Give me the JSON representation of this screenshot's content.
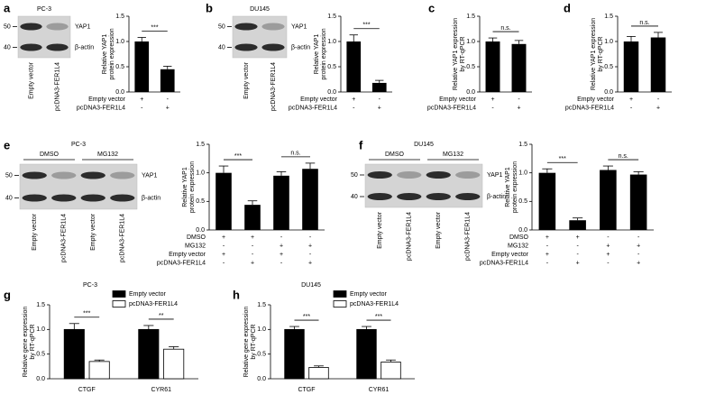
{
  "panels": [
    "a",
    "b",
    "c",
    "d",
    "e",
    "f",
    "g",
    "h"
  ],
  "blots": [
    {
      "title": "PC-3",
      "lanes": [
        "Empty vector",
        "pcDNA3-FER1L4"
      ],
      "bands": [
        "YAP1",
        "β-actin"
      ],
      "markers": [
        "50",
        "40"
      ]
    },
    {
      "title": "DU145",
      "lanes": [
        "Empty vector",
        "pcDNA3-FER1L4"
      ],
      "bands": [
        "YAP1",
        "β-actin"
      ],
      "markers": [
        "50",
        "40"
      ]
    },
    {
      "title": "PC-3",
      "groups": [
        "DMSO",
        "MG132"
      ],
      "lanes": [
        "Empty vector",
        "pcDNA3-FER1L4",
        "Empty vector",
        "pcDNA3-FER1L4"
      ],
      "bands": [
        "YAP1",
        "β-actin"
      ],
      "markers": [
        "50",
        "40"
      ]
    },
    {
      "title": "DU145",
      "groups": [
        "DMSO",
        "MG132"
      ],
      "lanes": [
        "Empty vector",
        "pcDNA3-FER1L4",
        "Empty vector",
        "pcDNA3-FER1L4"
      ],
      "bands": [
        "YAP1",
        "β-actin"
      ],
      "markers": [
        "50",
        "40"
      ]
    }
  ],
  "chart_data": [
    {
      "type": "bar",
      "y_label": [
        "Relative YAP1",
        "protein expression"
      ],
      "values": [
        1.0,
        0.45
      ],
      "errors": [
        0.08,
        0.06
      ],
      "color": "#000000",
      "conditions": [
        {
          "label": "Empty vector",
          "signs": [
            "+",
            "-"
          ]
        },
        {
          "label": "pcDNA3-FER1L4",
          "signs": [
            "-",
            "+"
          ]
        }
      ],
      "significance": [
        "***"
      ],
      "ylim": [
        0,
        1.5
      ],
      "yticks": [
        {
          "value": 0,
          "label": "0.0"
        },
        0.5,
        {
          "value": 1,
          "label": "1.0"
        },
        1.5
      ]
    },
    {
      "type": "bar",
      "y_label": [
        "Relative YAP1",
        "protein expression"
      ],
      "values": [
        1.0,
        0.18
      ],
      "errors": [
        0.13,
        0.05
      ],
      "color": "#000000",
      "conditions": [
        {
          "label": "Empty vector",
          "signs": [
            "+",
            "-"
          ]
        },
        {
          "label": "pcDNA3-FER1L4",
          "signs": [
            "-",
            "+"
          ]
        }
      ],
      "significance": [
        "***"
      ],
      "ylim": [
        0,
        1.5
      ],
      "yticks": [
        {
          "value": 0,
          "label": "0.0"
        },
        0.5,
        {
          "value": 1,
          "label": "1.0"
        },
        1.5
      ]
    },
    {
      "type": "bar",
      "y_label": [
        "Relative YAP1 expression",
        "by RT-qPCR"
      ],
      "values": [
        1.0,
        0.95
      ],
      "errors": [
        0.07,
        0.07
      ],
      "color": "#000000",
      "conditions": [
        {
          "label": "Empty vector",
          "signs": [
            "+",
            "-"
          ]
        },
        {
          "label": "pcDNA3-FER1L4",
          "signs": [
            "-",
            "+"
          ]
        }
      ],
      "significance": [
        "n.s."
      ],
      "ylim": [
        0,
        1.5
      ],
      "yticks": [
        {
          "value": 0,
          "label": "0.0"
        },
        0.5,
        {
          "value": 1,
          "label": "1.0"
        },
        1.5
      ]
    },
    {
      "type": "bar",
      "y_label": [
        "Relative YAP1 expression",
        "by RT-qPCR"
      ],
      "values": [
        1.0,
        1.08
      ],
      "errors": [
        0.1,
        0.1
      ],
      "color": "#000000",
      "conditions": [
        {
          "label": "Empty vector",
          "signs": [
            "+",
            "-"
          ]
        },
        {
          "label": "pcDNA3-FER1L4",
          "signs": [
            "-",
            "+"
          ]
        }
      ],
      "significance": [
        "n.s."
      ],
      "ylim": [
        0,
        1.5
      ],
      "yticks": [
        {
          "value": 0,
          "label": "0.0"
        },
        0.5,
        {
          "value": 1,
          "label": "1.0"
        },
        1.5
      ]
    },
    {
      "type": "bar",
      "y_label": [
        "Relative YAP1",
        "protein expression"
      ],
      "values": [
        1.0,
        0.44,
        0.95,
        1.07
      ],
      "errors": [
        0.12,
        0.07,
        0.07,
        0.1
      ],
      "color": "#000000",
      "conditions": [
        {
          "label": "DMSO",
          "signs": [
            "+",
            "+",
            "-",
            "-"
          ]
        },
        {
          "label": "MG132",
          "signs": [
            "-",
            "-",
            "+",
            "+"
          ]
        },
        {
          "label": "Empty vector",
          "signs": [
            "+",
            "-",
            "+",
            "-"
          ]
        },
        {
          "label": "pcDNA3-FER1L4",
          "signs": [
            "-",
            "+",
            "-",
            "+"
          ]
        }
      ],
      "significance": [
        "***",
        "n.s."
      ],
      "ylim": [
        0,
        1.5
      ],
      "yticks": [
        {
          "value": 0,
          "label": "0.0"
        },
        0.5,
        {
          "value": 1,
          "label": "1.0"
        },
        1.5
      ]
    },
    {
      "type": "bar",
      "y_label": [
        "Relative YAP1",
        "protein expression"
      ],
      "values": [
        1.0,
        0.17,
        1.05,
        0.97
      ],
      "errors": [
        0.07,
        0.04,
        0.07,
        0.05
      ],
      "color": "#000000",
      "conditions": [
        {
          "label": "DMSO",
          "signs": [
            "+",
            "+",
            "-",
            "-"
          ]
        },
        {
          "label": "MG132",
          "signs": [
            "-",
            "-",
            "+",
            "+"
          ]
        },
        {
          "label": "Empty vector",
          "signs": [
            "+",
            "-",
            "+",
            "-"
          ]
        },
        {
          "label": "pcDNA3-FER1L4",
          "signs": [
            "-",
            "+",
            "-",
            "+"
          ]
        }
      ],
      "significance": [
        "***",
        "n.s."
      ],
      "ylim": [
        0,
        1.5
      ],
      "yticks": [
        {
          "value": 0,
          "label": "0.0"
        },
        0.5,
        {
          "value": 1,
          "label": "1.0"
        },
        1.5
      ]
    },
    {
      "type": "grouped_bar",
      "title": "PC-3",
      "y_label": [
        "Relative gene expression",
        "by RT-qPCR"
      ],
      "categories": [
        "CTGF",
        "CYR61"
      ],
      "series": [
        {
          "name": "Empty vector",
          "color": "#000000",
          "values": [
            1.0,
            1.0
          ],
          "errors": [
            0.12,
            0.08
          ]
        },
        {
          "name": "pcDNA3-FER1L4",
          "color": "#ffffff",
          "values": [
            0.35,
            0.6
          ],
          "errors": [
            0.03,
            0.05
          ]
        }
      ],
      "significance": [
        "***",
        "**"
      ],
      "ylim": [
        0,
        1.5
      ],
      "yticks": [
        {
          "value": 0,
          "label": "0.0"
        },
        0.5,
        {
          "value": 1,
          "label": "1.0"
        },
        1.5
      ]
    },
    {
      "type": "grouped_bar",
      "title": "DU145",
      "y_label": [
        "Relative gene expression",
        "by RT-qPCR"
      ],
      "categories": [
        "CTGF",
        "CYR61"
      ],
      "series": [
        {
          "name": "Empty vector",
          "color": "#000000",
          "values": [
            1.0,
            1.0
          ],
          "errors": [
            0.06,
            0.06
          ]
        },
        {
          "name": "pcDNA3-FER1L4",
          "color": "#ffffff",
          "values": [
            0.23,
            0.34
          ],
          "errors": [
            0.03,
            0.04
          ]
        }
      ],
      "significance": [
        "***",
        "***"
      ],
      "ylim": [
        0,
        1.5
      ],
      "yticks": [
        {
          "value": 0,
          "label": "0.0"
        },
        0.5,
        {
          "value": 1,
          "label": "1.0"
        },
        1.5
      ]
    }
  ]
}
